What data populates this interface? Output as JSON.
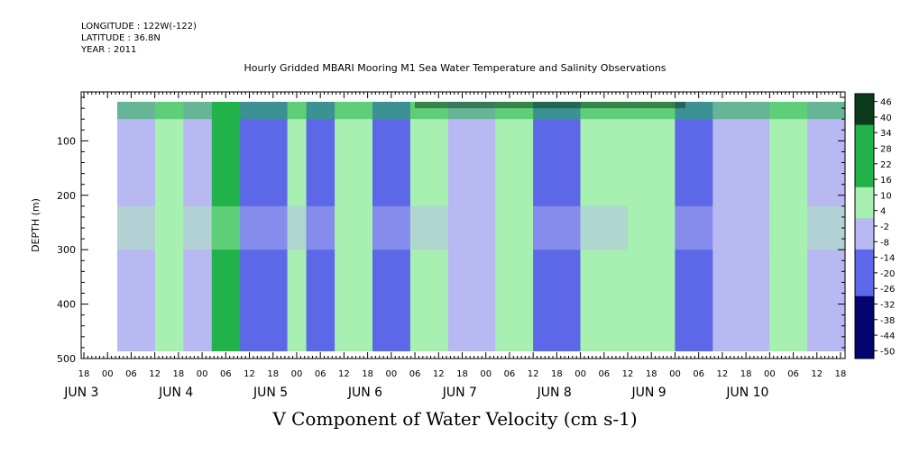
{
  "header": {
    "longitude": "LONGITUDE : 122W(-122)",
    "latitude": "LATITUDE : 36.8N",
    "year": "YEAR : 2011"
  },
  "chart_data": {
    "type": "heatmap",
    "title": "Hourly Gridded MBARI Mooring M1 Sea Water Temperature and Salinity Observations",
    "xlabel": "V Component of Water Velocity (cm s-1)",
    "ylabel": "DEPTH (m)",
    "ylim": [
      500,
      10
    ],
    "y_ticks": [
      100,
      200,
      300,
      400,
      500
    ],
    "x_hour_ticks": [
      "18",
      "00",
      "06",
      "12",
      "18",
      "00",
      "06",
      "12",
      "18",
      "00",
      "06",
      "12",
      "18",
      "00",
      "06",
      "12",
      "18",
      "00",
      "06",
      "12",
      "18",
      "00",
      "06",
      "12",
      "18",
      "00",
      "06",
      "12",
      "18",
      "00",
      "06",
      "12",
      "18"
    ],
    "x_day_labels": [
      "JUN  3",
      "JUN  4",
      "JUN  5",
      "JUN  6",
      "JUN  7",
      "JUN  8",
      "JUN  9",
      "JUN  10"
    ],
    "colorbar": {
      "levels": [
        "46",
        "40",
        "34",
        "28",
        "22",
        "16",
        "10",
        "4",
        "-2",
        "-8",
        "-14",
        "-20",
        "-26",
        "-32",
        "-38",
        "-44",
        "-50"
      ],
      "colors": {
        "strong_pos": "#0b3b1a",
        "mid_pos": "#22b24a",
        "weak_pos": "#a8f0b2",
        "weak_neg": "#b8b8f2",
        "mid_neg": "#5c68e8",
        "strong_neg": "#040470"
      }
    },
    "columns": [
      {
        "start": 0.0,
        "end": 0.4,
        "v": -4
      },
      {
        "start": 0.4,
        "end": 0.7,
        "v": 14
      },
      {
        "start": 0.7,
        "end": 1.0,
        "v": -6
      },
      {
        "start": 1.0,
        "end": 1.3,
        "v": 16
      },
      {
        "start": 1.3,
        "end": 1.8,
        "v": -14
      },
      {
        "start": 1.8,
        "end": 2.0,
        "v": 8
      },
      {
        "start": 2.0,
        "end": 2.3,
        "v": -10
      },
      {
        "start": 2.3,
        "end": 2.7,
        "v": 14
      },
      {
        "start": 2.7,
        "end": 3.1,
        "v": -12
      },
      {
        "start": 3.1,
        "end": 3.5,
        "v": 6
      },
      {
        "start": 3.5,
        "end": 4.0,
        "v": -8
      },
      {
        "start": 4.0,
        "end": 4.4,
        "v": 12
      },
      {
        "start": 4.4,
        "end": 4.9,
        "v": -12
      },
      {
        "start": 4.9,
        "end": 5.4,
        "v": 4
      },
      {
        "start": 5.4,
        "end": 5.9,
        "v": 14
      },
      {
        "start": 5.9,
        "end": 6.3,
        "v": -12
      },
      {
        "start": 6.3,
        "end": 6.9,
        "v": -8
      },
      {
        "start": 6.9,
        "end": 7.3,
        "v": 12
      },
      {
        "start": 7.3,
        "end": 7.7,
        "v": -6
      }
    ],
    "surface_layer": {
      "depth_max": 60,
      "v": 28
    }
  }
}
